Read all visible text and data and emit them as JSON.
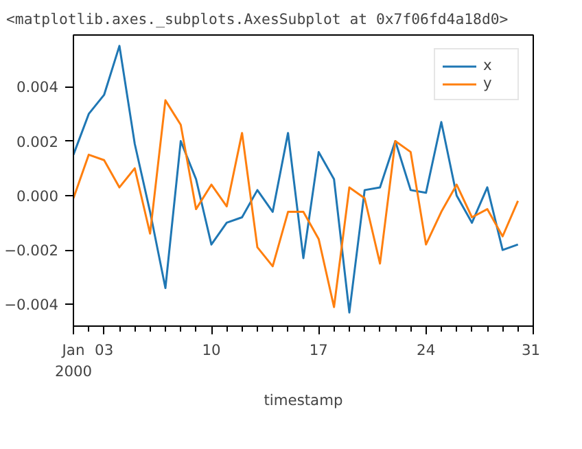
{
  "chart_data": {
    "type": "line",
    "xlabel": "timestamp",
    "annotations": [
      "<matplotlib.axes._subplots.AxesSubplot at 0x7f06fd4a18d0>"
    ],
    "x": [
      "2000-01-01",
      "2000-01-02",
      "2000-01-03",
      "2000-01-04",
      "2000-01-05",
      "2000-01-06",
      "2000-01-07",
      "2000-01-08",
      "2000-01-09",
      "2000-01-10",
      "2000-01-11",
      "2000-01-12",
      "2000-01-13",
      "2000-01-14",
      "2000-01-15",
      "2000-01-16",
      "2000-01-17",
      "2000-01-18",
      "2000-01-19",
      "2000-01-20",
      "2000-01-21",
      "2000-01-22",
      "2000-01-23",
      "2000-01-24",
      "2000-01-25",
      "2000-01-26",
      "2000-01-27",
      "2000-01-28",
      "2000-01-29",
      "2000-01-30"
    ],
    "series": [
      {
        "name": "x",
        "color": "#1f77b4",
        "values": [
          0.0015,
          0.003,
          0.0037,
          0.0055,
          0.0019,
          -0.0006,
          -0.0034,
          0.002,
          0.0006,
          -0.0018,
          -0.001,
          -0.0008,
          0.0002,
          -0.0006,
          0.0023,
          -0.0023,
          0.0016,
          0.0006,
          -0.0043,
          0.0002,
          0.0003,
          0.002,
          0.0002,
          0.0001,
          0.0027,
          0.0,
          -0.001,
          0.0003,
          -0.002,
          -0.0018
        ]
      },
      {
        "name": "y",
        "color": "#ff7f0e",
        "values": [
          -0.0001,
          0.0015,
          0.0013,
          0.0003,
          0.001,
          -0.0014,
          0.0035,
          0.0026,
          -0.0005,
          0.0004,
          -0.0004,
          0.0023,
          -0.0019,
          -0.0026,
          -0.0006,
          -0.0006,
          -0.0016,
          -0.0041,
          0.0003,
          -0.0001,
          -0.0025,
          0.002,
          0.0016,
          -0.0018,
          -0.0006,
          0.0004,
          -0.0008,
          -0.0005,
          -0.0015,
          -0.0002
        ]
      }
    ],
    "xlim": [
      "2000-01-01",
      "2000-01-31"
    ],
    "xticks": [
      {
        "value": "2000-01-01",
        "label": "Jan\n2000"
      },
      {
        "value": "2000-01-03",
        "label": "03"
      },
      {
        "value": "2000-01-10",
        "label": "10"
      },
      {
        "value": "2000-01-17",
        "label": "17"
      },
      {
        "value": "2000-01-24",
        "label": "24"
      },
      {
        "value": "2000-01-31",
        "label": "31"
      }
    ],
    "ylim": [
      -0.0048,
      0.0059
    ],
    "yticks": [
      {
        "value": -0.004,
        "label": "−0.004"
      },
      {
        "value": -0.002,
        "label": "−0.002"
      },
      {
        "value": 0,
        "label": "0.000"
      },
      {
        "value": 0.002,
        "label": "0.002"
      },
      {
        "value": 0.004,
        "label": "0.004"
      }
    ],
    "grid": false,
    "legend": "top right",
    "line_style": "solid",
    "marker": "none"
  }
}
